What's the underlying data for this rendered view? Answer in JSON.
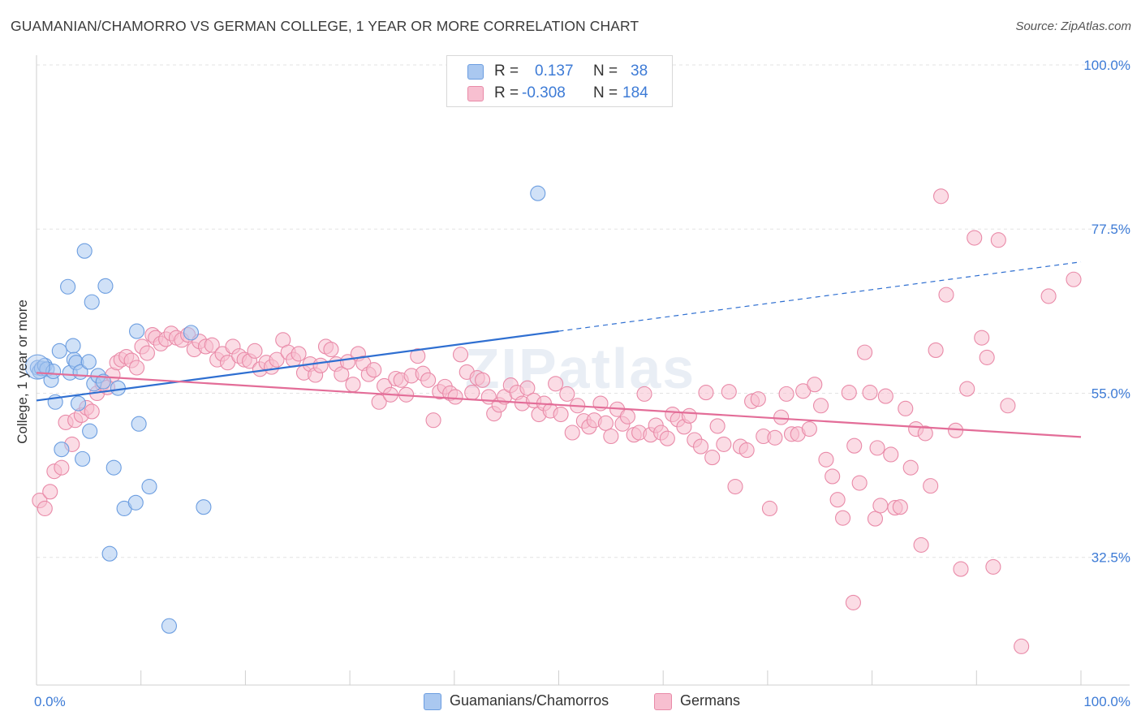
{
  "title": "GUAMANIAN/CHAMORRO VS GERMAN COLLEGE, 1 YEAR OR MORE CORRELATION CHART",
  "source": "Source: ZipAtlas.com",
  "watermark": "ZIPatlas",
  "legend": {
    "rows": [
      {
        "r_label": "R =",
        "r_value": "0.137",
        "n_label": "N =",
        "n_value": "38",
        "color": "#aac8f0",
        "stroke": "#6b9de0"
      },
      {
        "r_label": "R =",
        "r_value": "-0.308",
        "n_label": "N =",
        "n_value": "184",
        "color": "#f7bfd0",
        "stroke": "#e98aa8"
      }
    ]
  },
  "bottom_legend": [
    {
      "label": "Guamanians/Chamorros",
      "color": "#aac8f0",
      "stroke": "#6b9de0"
    },
    {
      "label": "Germans",
      "color": "#f7bfd0",
      "stroke": "#e98aa8"
    }
  ],
  "chart_data": {
    "type": "scatter",
    "xlabel": "",
    "ylabel": "College, 1 year or more",
    "xlim": [
      0,
      100
    ],
    "ylim": [
      15,
      100
    ],
    "x_tick_labels": [
      {
        "value": 0,
        "label": "0.0%"
      },
      {
        "value": 100,
        "label": "100.0%"
      }
    ],
    "y_tick_labels": [
      {
        "value": 100,
        "label": "100.0%"
      },
      {
        "value": 77.5,
        "label": "77.5%"
      },
      {
        "value": 55,
        "label": "55.0%"
      },
      {
        "value": 32.5,
        "label": "32.5%"
      }
    ],
    "grid": true,
    "series": [
      {
        "name": "Guamanians/Chamorros",
        "color": "#aac8f0",
        "stroke": "#6b9de0",
        "line_color": "#2f6fd1",
        "trend": {
          "x": [
            0,
            50
          ],
          "y": [
            54.0,
            63.5
          ],
          "dashed_to": [
            100,
            73.0
          ]
        },
        "points": [
          [
            0.1,
            58.5
          ],
          [
            0.3,
            58.0
          ],
          [
            0.5,
            58.4
          ],
          [
            0.8,
            58.8
          ],
          [
            1.0,
            58.3
          ],
          [
            1.4,
            56.8
          ],
          [
            1.6,
            58.0
          ],
          [
            1.8,
            53.8
          ],
          [
            2.2,
            60.8
          ],
          [
            2.4,
            47.3
          ],
          [
            3.0,
            69.6
          ],
          [
            3.2,
            57.8
          ],
          [
            3.5,
            61.5
          ],
          [
            3.6,
            59.6
          ],
          [
            3.8,
            59.2
          ],
          [
            4.0,
            53.6
          ],
          [
            4.2,
            57.9
          ],
          [
            4.4,
            46.0
          ],
          [
            4.6,
            74.5
          ],
          [
            5.0,
            59.3
          ],
          [
            5.1,
            49.8
          ],
          [
            5.3,
            67.5
          ],
          [
            5.5,
            56.3
          ],
          [
            5.9,
            57.4
          ],
          [
            6.4,
            56.6
          ],
          [
            6.6,
            69.7
          ],
          [
            7.0,
            33.0
          ],
          [
            7.4,
            44.8
          ],
          [
            7.8,
            55.7
          ],
          [
            8.4,
            39.2
          ],
          [
            9.5,
            40.0
          ],
          [
            9.6,
            63.5
          ],
          [
            9.8,
            50.8
          ],
          [
            10.8,
            42.2
          ],
          [
            12.7,
            23.1
          ],
          [
            14.8,
            63.3
          ],
          [
            16.0,
            39.4
          ],
          [
            48.0,
            82.4
          ]
        ]
      },
      {
        "name": "Germans",
        "color": "#f7bfd0",
        "stroke": "#e98aa8",
        "line_color": "#e36d98",
        "trend": {
          "x": [
            0,
            100
          ],
          "y": [
            57.8,
            49.0
          ]
        },
        "points": [
          [
            0.3,
            40.3
          ],
          [
            0.8,
            39.2
          ],
          [
            1.3,
            41.5
          ],
          [
            1.7,
            44.3
          ],
          [
            2.4,
            44.8
          ],
          [
            2.8,
            51.0
          ],
          [
            3.4,
            48.0
          ],
          [
            3.7,
            51.3
          ],
          [
            4.3,
            52.0
          ],
          [
            4.8,
            53.0
          ],
          [
            5.3,
            52.5
          ],
          [
            5.8,
            55.0
          ],
          [
            6.3,
            56.3
          ],
          [
            6.8,
            55.8
          ],
          [
            7.3,
            57.5
          ],
          [
            7.7,
            59.2
          ],
          [
            8.1,
            59.6
          ],
          [
            8.6,
            60.0
          ],
          [
            9.1,
            59.5
          ],
          [
            9.6,
            58.5
          ],
          [
            10.1,
            61.4
          ],
          [
            10.6,
            60.5
          ],
          [
            11.1,
            63.0
          ],
          [
            11.4,
            62.6
          ],
          [
            11.9,
            61.8
          ],
          [
            12.4,
            62.4
          ],
          [
            12.9,
            63.2
          ],
          [
            13.4,
            62.6
          ],
          [
            13.9,
            62.3
          ],
          [
            14.5,
            63.0
          ],
          [
            15.1,
            61.0
          ],
          [
            15.6,
            62.1
          ],
          [
            16.2,
            61.4
          ],
          [
            16.8,
            61.6
          ],
          [
            17.3,
            59.6
          ],
          [
            17.8,
            60.4
          ],
          [
            18.3,
            59.2
          ],
          [
            18.8,
            61.4
          ],
          [
            19.4,
            60.1
          ],
          [
            19.9,
            59.6
          ],
          [
            20.4,
            59.4
          ],
          [
            20.9,
            60.8
          ],
          [
            21.4,
            58.3
          ],
          [
            22.0,
            59.2
          ],
          [
            22.5,
            58.6
          ],
          [
            23.0,
            59.6
          ],
          [
            23.6,
            62.3
          ],
          [
            24.1,
            60.6
          ],
          [
            24.6,
            59.6
          ],
          [
            25.1,
            60.4
          ],
          [
            25.6,
            57.8
          ],
          [
            26.2,
            59.0
          ],
          [
            26.7,
            57.5
          ],
          [
            27.2,
            58.8
          ],
          [
            27.7,
            61.4
          ],
          [
            28.2,
            61.0
          ],
          [
            28.7,
            59.0
          ],
          [
            29.2,
            57.6
          ],
          [
            29.8,
            59.3
          ],
          [
            30.3,
            56.2
          ],
          [
            30.8,
            60.4
          ],
          [
            31.3,
            59.1
          ],
          [
            31.8,
            57.6
          ],
          [
            32.3,
            58.2
          ],
          [
            32.8,
            53.8
          ],
          [
            33.3,
            56.0
          ],
          [
            33.9,
            54.8
          ],
          [
            34.4,
            57.0
          ],
          [
            34.9,
            56.8
          ],
          [
            35.4,
            54.8
          ],
          [
            35.9,
            57.4
          ],
          [
            36.5,
            60.1
          ],
          [
            37.0,
            57.7
          ],
          [
            37.5,
            56.8
          ],
          [
            38.0,
            51.3
          ],
          [
            38.6,
            55.2
          ],
          [
            39.1,
            55.9
          ],
          [
            39.6,
            55.0
          ],
          [
            40.1,
            54.5
          ],
          [
            40.6,
            60.3
          ],
          [
            41.2,
            57.9
          ],
          [
            41.7,
            55.1
          ],
          [
            42.2,
            57.1
          ],
          [
            42.7,
            56.8
          ],
          [
            43.3,
            54.5
          ],
          [
            43.8,
            52.2
          ],
          [
            44.3,
            53.4
          ],
          [
            44.8,
            54.5
          ],
          [
            45.4,
            56.1
          ],
          [
            46.0,
            55.1
          ],
          [
            46.5,
            53.6
          ],
          [
            47.0,
            55.7
          ],
          [
            47.6,
            54.0
          ],
          [
            48.1,
            52.1
          ],
          [
            48.6,
            53.6
          ],
          [
            49.2,
            52.6
          ],
          [
            49.7,
            56.3
          ],
          [
            50.2,
            52.1
          ],
          [
            50.8,
            54.9
          ],
          [
            51.3,
            49.6
          ],
          [
            51.8,
            53.3
          ],
          [
            52.4,
            51.2
          ],
          [
            52.9,
            50.4
          ],
          [
            53.4,
            51.3
          ],
          [
            54.0,
            53.6
          ],
          [
            54.5,
            50.9
          ],
          [
            55.0,
            49.1
          ],
          [
            55.6,
            52.8
          ],
          [
            56.1,
            50.8
          ],
          [
            56.6,
            51.8
          ],
          [
            57.2,
            49.3
          ],
          [
            57.7,
            49.6
          ],
          [
            58.2,
            54.9
          ],
          [
            58.8,
            49.3
          ],
          [
            59.3,
            50.6
          ],
          [
            59.8,
            49.6
          ],
          [
            60.4,
            48.8
          ],
          [
            60.9,
            52.1
          ],
          [
            61.4,
            51.4
          ],
          [
            62.0,
            50.4
          ],
          [
            62.5,
            51.9
          ],
          [
            63.0,
            48.6
          ],
          [
            63.6,
            47.7
          ],
          [
            64.1,
            55.1
          ],
          [
            64.7,
            46.2
          ],
          [
            65.2,
            50.5
          ],
          [
            65.8,
            48.0
          ],
          [
            66.3,
            55.2
          ],
          [
            66.9,
            42.2
          ],
          [
            67.4,
            47.7
          ],
          [
            68.0,
            47.2
          ],
          [
            68.5,
            53.9
          ],
          [
            69.1,
            54.2
          ],
          [
            69.6,
            49.1
          ],
          [
            70.2,
            39.2
          ],
          [
            70.7,
            48.9
          ],
          [
            71.3,
            51.7
          ],
          [
            71.8,
            54.9
          ],
          [
            72.3,
            49.4
          ],
          [
            72.9,
            49.4
          ],
          [
            73.4,
            55.3
          ],
          [
            74.0,
            50.1
          ],
          [
            74.5,
            56.2
          ],
          [
            75.1,
            53.3
          ],
          [
            75.6,
            45.9
          ],
          [
            76.2,
            43.6
          ],
          [
            76.7,
            40.4
          ],
          [
            77.2,
            37.9
          ],
          [
            77.8,
            55.1
          ],
          [
            78.3,
            47.8
          ],
          [
            78.8,
            42.7
          ],
          [
            79.3,
            60.6
          ],
          [
            79.8,
            55.1
          ],
          [
            80.3,
            37.8
          ],
          [
            80.8,
            39.6
          ],
          [
            81.3,
            54.6
          ],
          [
            81.8,
            46.6
          ],
          [
            82.2,
            39.3
          ],
          [
            82.7,
            39.4
          ],
          [
            83.2,
            52.9
          ],
          [
            83.7,
            44.8
          ],
          [
            84.2,
            50.1
          ],
          [
            84.7,
            34.2
          ],
          [
            85.1,
            49.5
          ],
          [
            85.6,
            42.3
          ],
          [
            86.1,
            60.9
          ],
          [
            86.6,
            82.0
          ],
          [
            87.1,
            68.5
          ],
          [
            88.0,
            49.9
          ],
          [
            89.1,
            55.6
          ],
          [
            89.8,
            76.3
          ],
          [
            90.5,
            62.6
          ],
          [
            91.0,
            59.9
          ],
          [
            91.6,
            31.2
          ],
          [
            92.1,
            76.0
          ],
          [
            93.0,
            53.3
          ],
          [
            94.3,
            20.3
          ],
          [
            96.9,
            68.3
          ],
          [
            99.3,
            70.6
          ],
          [
            78.2,
            26.3
          ],
          [
            88.5,
            30.9
          ],
          [
            80.5,
            47.5
          ]
        ]
      }
    ]
  }
}
